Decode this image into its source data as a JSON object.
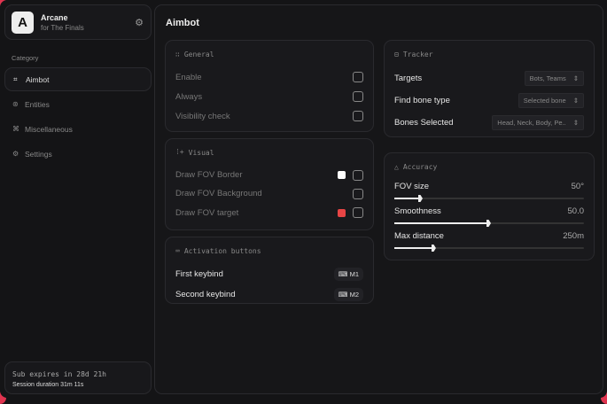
{
  "brand": {
    "name": "Arcane",
    "subtitle": "for The Finals",
    "logo_letter": "A"
  },
  "sidebar": {
    "category_label": "Category",
    "items": [
      {
        "label": "Aimbot",
        "icon": "crosshair-icon",
        "active": true
      },
      {
        "label": "Entities",
        "icon": "entities-icon"
      },
      {
        "label": "Miscellaneous",
        "icon": "misc-icon"
      },
      {
        "label": "Settings",
        "icon": "gear-icon"
      }
    ]
  },
  "subscription": {
    "expires": "Sub expires in 28d 21h",
    "session": "Session duration 31m 11s"
  },
  "page_title": "Aimbot",
  "general": {
    "title": "General",
    "items": [
      {
        "label": "Enable"
      },
      {
        "label": "Always"
      },
      {
        "label": "Visibility check"
      }
    ]
  },
  "visual": {
    "title": "Visual",
    "items": [
      {
        "label": "Draw FOV Border",
        "color": "#ffffff"
      },
      {
        "label": "Draw FOV Background"
      },
      {
        "label": "Draw FOV target",
        "color": "#e84545"
      }
    ]
  },
  "activation": {
    "title": "Activation buttons",
    "items": [
      {
        "label": "First keybind",
        "key": "M1"
      },
      {
        "label": "Second keybind",
        "key": "M2"
      }
    ]
  },
  "tracker": {
    "title": "Tracker",
    "items": [
      {
        "label": "Targets",
        "value": "Bots, Teams"
      },
      {
        "label": "Find bone type",
        "value": "Selected bone"
      },
      {
        "label": "Bones Selected",
        "value": "Head, Neck, Body, Pe.."
      }
    ]
  },
  "accuracy": {
    "title": "Accuracy",
    "sliders": [
      {
        "label": "FOV size",
        "value": "50°",
        "fraction": 0.14
      },
      {
        "label": "Smoothness",
        "value": "50.0",
        "fraction": 0.5
      },
      {
        "label": "Max distance",
        "value": "250m",
        "fraction": 0.21
      }
    ]
  }
}
